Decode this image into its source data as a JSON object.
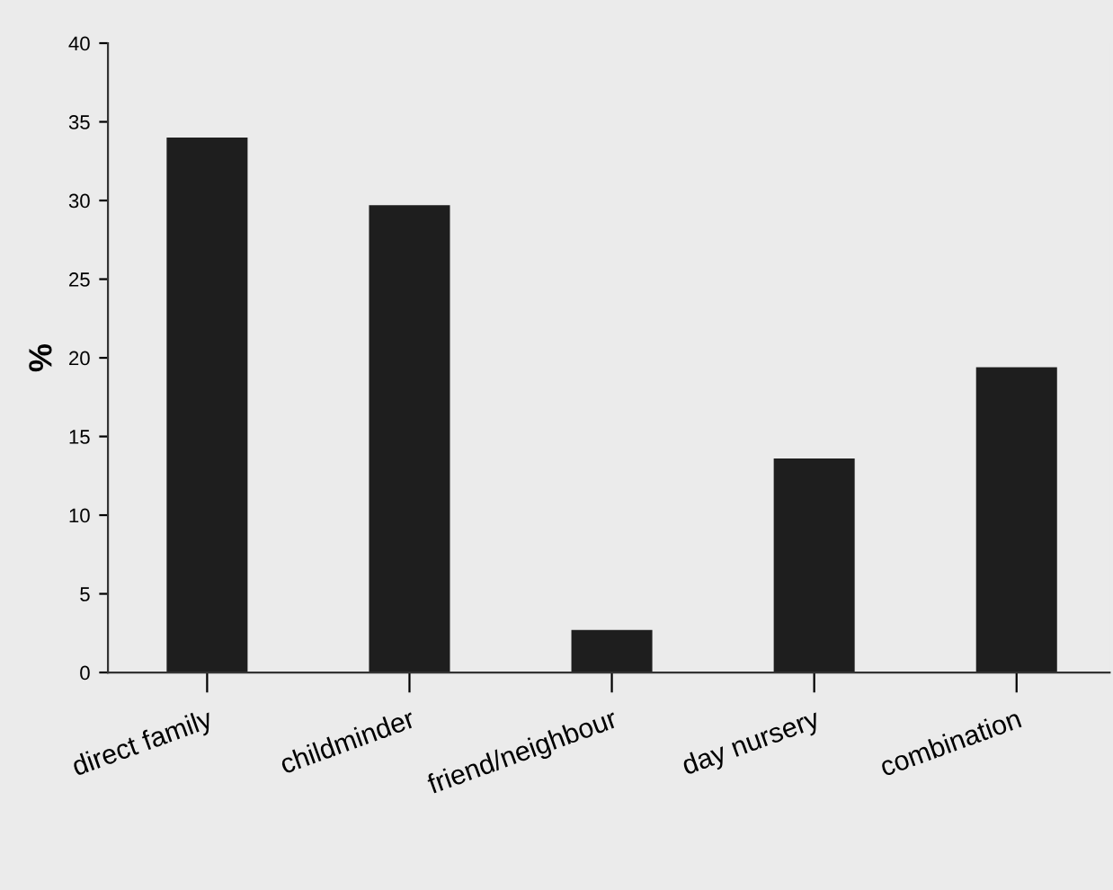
{
  "chart_data": {
    "type": "bar",
    "ylabel": "%",
    "categories": [
      "direct family",
      "childminder",
      "friend/neighbour",
      "day nursery",
      "combination"
    ],
    "values": [
      34,
      29.7,
      2.7,
      13.6,
      19.4
    ],
    "color": "#1e1e1e",
    "ylim": [
      0,
      40
    ],
    "yticks": [
      0,
      5,
      10,
      15,
      20,
      25,
      30,
      35,
      40
    ],
    "grid": false
  }
}
